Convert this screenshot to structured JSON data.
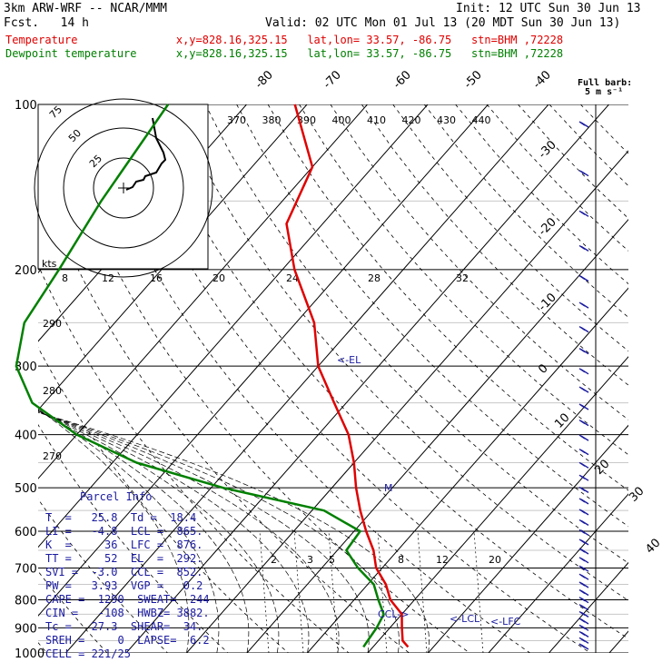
{
  "header": {
    "model": "3km ARW-WRF -- NCAR/MMM",
    "init": "Init: 12 UTC Sun 30 Jun 13",
    "fcst": "Fcst.   14 h",
    "valid": "Valid: 02 UTC Mon 01 Jul 13 (20 MDT Sun 30 Jun 13)",
    "temp_line": "Temperature               x,y=828.16,325.15   lat,lon= 33.57, -86.75   stn=BHM ,72228",
    "dew_line": "Dewpoint temperature      x,y=828.16,325.15   lat,lon= 33.57, -86.75   stn=BHM ,72228"
  },
  "barb_label": {
    "line1": "Full barb:",
    "line2": "5 m s⁻¹"
  },
  "hodograph": {
    "rings": [
      "25",
      "50",
      "75"
    ],
    "kts_label": "kts"
  },
  "parcel": {
    "title": "Parcel Info",
    "lines": [
      "T  =   25.8  Td =  18.4",
      "LI =   -4.8  LCL =  865.",
      "K  =     36  LFC =  876.",
      "TT =     52  EL  =  292.",
      "SVI =  -3.0  CCL =  852.",
      "PW =   3.93  VGP =   0.2",
      "CAPE =  1290  SWEAT=  244",
      "CIN =   -108  HWBZ= 3882.",
      "Tc =   27.3  SHEAR=  34.",
      "SREH =     0  LAPSE=  6.2",
      "CELL = 221/25"
    ]
  },
  "markers": {
    "el": "<-EL",
    "lcl": "<-LCL",
    "lfc": "<-LFC",
    "ccl": "CCL->",
    "m": "M"
  },
  "colors": {
    "temperature": "#e00000",
    "dewpoint": "#008000",
    "isotherm": "#000000",
    "text_blue": "#1a1aa0"
  },
  "chart_data": {
    "type": "line",
    "title": "",
    "ylabel": "",
    "xlabel": "",
    "y_scale": "log pressure (hPa)",
    "pressure_levels": [
      100,
      200,
      300,
      400,
      500,
      600,
      700,
      800,
      900,
      1000
    ],
    "isotherm_labels": [
      -80,
      -70,
      -60,
      -50,
      -40,
      -30,
      -20,
      -10,
      0,
      10,
      20,
      30,
      40
    ],
    "theta_labels": [
      370,
      380,
      390,
      400,
      410,
      420,
      430,
      440
    ],
    "theta_e_labels": [
      290,
      280,
      270
    ],
    "mixing_ratio_labels": [
      8,
      12,
      16,
      20,
      24,
      28,
      32
    ],
    "mixing_ratio_lower_labels": [
      2,
      3,
      5,
      8,
      12,
      20
    ],
    "series": [
      {
        "name": "Temperature",
        "points": [
          [
            100,
            -72
          ],
          [
            130,
            -60
          ],
          [
            165,
            -56
          ],
          [
            200,
            -48
          ],
          [
            250,
            -37
          ],
          [
            300,
            -30
          ],
          [
            350,
            -22
          ],
          [
            400,
            -15
          ],
          [
            450,
            -10
          ],
          [
            500,
            -6
          ],
          [
            550,
            -2
          ],
          [
            600,
            2
          ],
          [
            650,
            6
          ],
          [
            700,
            9
          ],
          [
            750,
            13
          ],
          [
            800,
            16
          ],
          [
            850,
            20
          ],
          [
            900,
            22
          ],
          [
            950,
            24
          ],
          [
            975,
            25.8
          ]
        ]
      },
      {
        "name": "Dewpoint temperature",
        "points": [
          [
            100,
            -93
          ],
          [
            150,
            -90
          ],
          [
            200,
            -87
          ],
          [
            250,
            -85
          ],
          [
            300,
            -80
          ],
          [
            350,
            -72
          ],
          [
            400,
            -60
          ],
          [
            450,
            -46
          ],
          [
            500,
            -28
          ],
          [
            550,
            -8
          ],
          [
            600,
            1
          ],
          [
            650,
            1.5
          ],
          [
            700,
            6
          ],
          [
            750,
            11
          ],
          [
            800,
            14
          ],
          [
            850,
            17
          ],
          [
            900,
            17.8
          ],
          [
            950,
            18.2
          ],
          [
            975,
            18.4
          ]
        ]
      }
    ]
  }
}
